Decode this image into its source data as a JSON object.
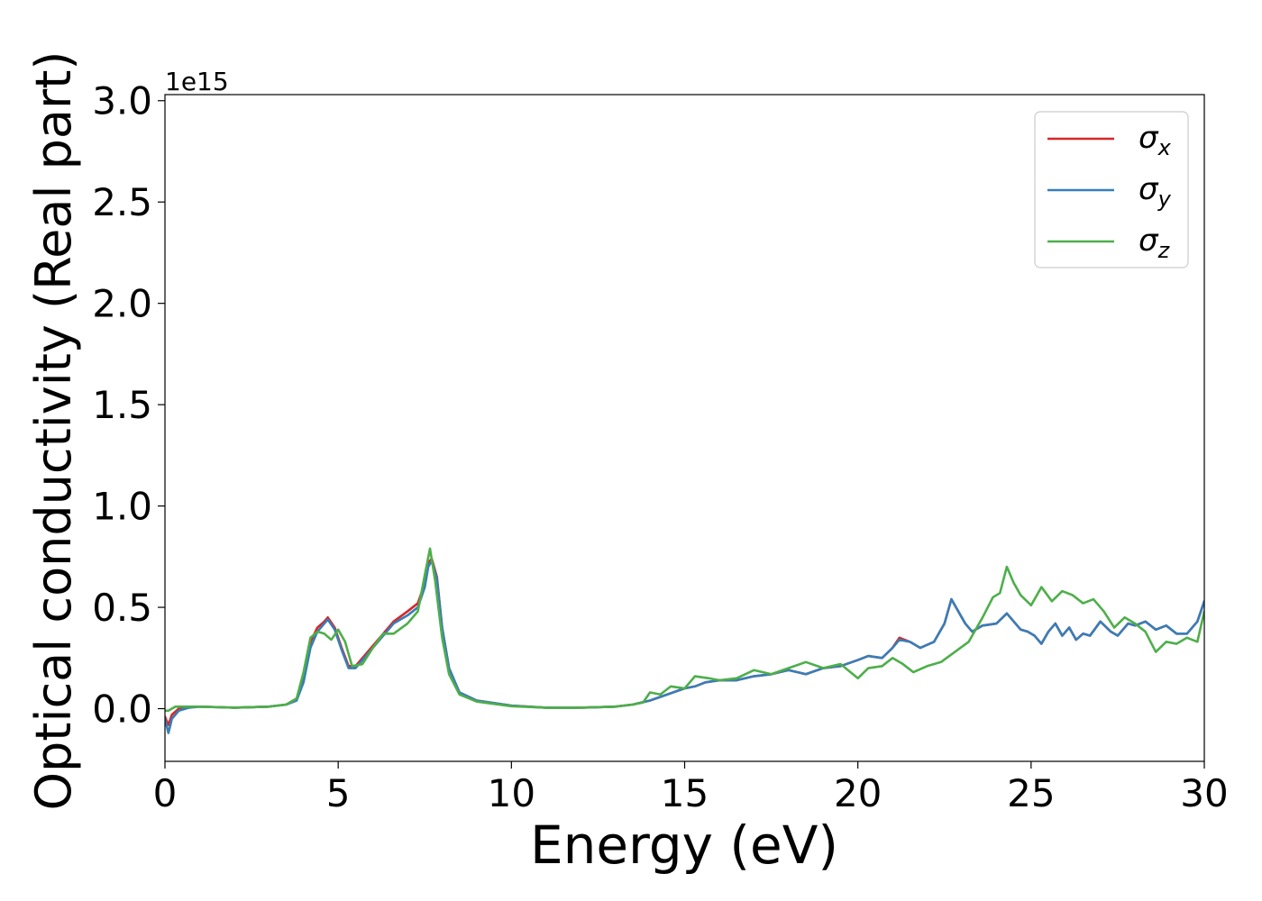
{
  "chart_data": {
    "type": "line",
    "title": "",
    "xlabel": "Energy (eV)",
    "ylabel": "Optical conductivity (Real part)",
    "y_offset_text": "1e15",
    "y_scale_factor": 1000000000000000.0,
    "xlim": [
      0,
      30
    ],
    "ylim": [
      -0.26,
      3.03
    ],
    "x_ticks": [
      0,
      5,
      10,
      15,
      20,
      25,
      30
    ],
    "x_tick_labels": [
      "0",
      "5",
      "10",
      "15",
      "20",
      "25",
      "30"
    ],
    "y_ticks": [
      0.0,
      0.5,
      1.0,
      1.5,
      2.0,
      2.5,
      3.0
    ],
    "y_tick_labels": [
      "0.0",
      "0.5",
      "1.0",
      "1.5",
      "2.0",
      "2.5",
      "3.0"
    ],
    "grid": false,
    "legend_position": "top-right",
    "legend": [
      {
        "symbol": "σ",
        "subscript": "x"
      },
      {
        "symbol": "σ",
        "subscript": "y"
      },
      {
        "symbol": "σ",
        "subscript": "z"
      }
    ],
    "series": [
      {
        "color": "#d62728",
        "x": [
          0,
          0.1,
          0.2,
          0.4,
          0.7,
          1,
          2,
          3,
          3.5,
          3.8,
          4.0,
          4.2,
          4.4,
          4.6,
          4.7,
          4.9,
          5.1,
          5.3,
          5.5,
          5.8,
          6.2,
          6.6,
          7.0,
          7.3,
          7.5,
          7.6,
          7.7,
          7.85,
          8.0,
          8.2,
          8.5,
          9,
          10,
          11,
          12,
          13,
          13.5,
          14.0,
          14.5,
          15.0,
          15.3,
          15.6,
          16.0,
          16.5,
          17.0,
          17.5,
          18.0,
          18.5,
          19.0,
          19.5,
          20.0,
          20.3,
          20.7,
          21.0,
          21.2,
          21.5,
          21.8,
          22.2,
          22.5,
          22.7,
          22.9,
          23.1,
          23.3,
          23.6,
          24.0,
          24.3,
          24.5,
          24.7,
          24.9,
          25.1,
          25.3,
          25.5,
          25.7,
          25.9,
          26.1,
          26.3,
          26.5,
          26.7,
          27.0,
          27.3,
          27.5,
          27.8,
          28.0,
          28.3,
          28.6,
          28.9,
          29.2,
          29.5,
          29.8,
          30
        ],
        "y": [
          -0.04,
          -0.08,
          -0.03,
          0.0,
          0.01,
          0.01,
          0.005,
          0.01,
          0.02,
          0.05,
          0.15,
          0.33,
          0.4,
          0.43,
          0.45,
          0.4,
          0.3,
          0.21,
          0.21,
          0.27,
          0.35,
          0.43,
          0.48,
          0.52,
          0.62,
          0.72,
          0.74,
          0.65,
          0.4,
          0.2,
          0.08,
          0.04,
          0.015,
          0.005,
          0.005,
          0.01,
          0.02,
          0.04,
          0.07,
          0.1,
          0.11,
          0.13,
          0.14,
          0.14,
          0.16,
          0.17,
          0.19,
          0.17,
          0.2,
          0.21,
          0.24,
          0.26,
          0.25,
          0.3,
          0.35,
          0.33,
          0.3,
          0.33,
          0.42,
          0.54,
          0.48,
          0.42,
          0.38,
          0.41,
          0.42,
          0.47,
          0.43,
          0.39,
          0.38,
          0.36,
          0.32,
          0.38,
          0.42,
          0.36,
          0.4,
          0.34,
          0.37,
          0.36,
          0.43,
          0.38,
          0.36,
          0.42,
          0.41,
          0.43,
          0.39,
          0.41,
          0.37,
          0.37,
          0.43,
          0.53
        ]
      },
      {
        "color": "#377eb8",
        "x": [
          0,
          0.1,
          0.2,
          0.4,
          0.7,
          1,
          2,
          3,
          3.5,
          3.8,
          4.0,
          4.2,
          4.4,
          4.6,
          4.7,
          4.9,
          5.1,
          5.3,
          5.5,
          5.8,
          6.2,
          6.6,
          7.0,
          7.3,
          7.5,
          7.6,
          7.7,
          7.85,
          8.0,
          8.2,
          8.5,
          9,
          10,
          11,
          12,
          13,
          13.5,
          14.0,
          14.5,
          15.0,
          15.3,
          15.6,
          16.0,
          16.5,
          17.0,
          17.5,
          18.0,
          18.5,
          19.0,
          19.5,
          20.0,
          20.3,
          20.7,
          21.0,
          21.2,
          21.5,
          21.8,
          22.2,
          22.5,
          22.7,
          22.9,
          23.1,
          23.3,
          23.6,
          24.0,
          24.3,
          24.5,
          24.7,
          24.9,
          25.1,
          25.3,
          25.5,
          25.7,
          25.9,
          26.1,
          26.3,
          26.5,
          26.7,
          27.0,
          27.3,
          27.5,
          27.8,
          28.0,
          28.3,
          28.6,
          28.9,
          29.2,
          29.5,
          29.8,
          30
        ],
        "y": [
          -0.05,
          -0.12,
          -0.05,
          -0.01,
          0.005,
          0.01,
          0.005,
          0.01,
          0.02,
          0.04,
          0.13,
          0.3,
          0.38,
          0.42,
          0.44,
          0.39,
          0.29,
          0.2,
          0.2,
          0.26,
          0.34,
          0.42,
          0.46,
          0.5,
          0.6,
          0.7,
          0.73,
          0.64,
          0.4,
          0.2,
          0.08,
          0.04,
          0.015,
          0.005,
          0.005,
          0.01,
          0.02,
          0.04,
          0.07,
          0.1,
          0.11,
          0.13,
          0.14,
          0.14,
          0.16,
          0.17,
          0.19,
          0.17,
          0.2,
          0.21,
          0.24,
          0.26,
          0.25,
          0.3,
          0.34,
          0.33,
          0.3,
          0.33,
          0.42,
          0.54,
          0.48,
          0.42,
          0.38,
          0.41,
          0.42,
          0.47,
          0.43,
          0.39,
          0.38,
          0.36,
          0.32,
          0.38,
          0.42,
          0.36,
          0.4,
          0.34,
          0.37,
          0.36,
          0.43,
          0.38,
          0.36,
          0.42,
          0.41,
          0.43,
          0.39,
          0.41,
          0.37,
          0.37,
          0.43,
          0.53
        ]
      },
      {
        "color": "#4daf4a",
        "x": [
          0,
          0.1,
          0.3,
          0.6,
          1,
          2,
          3,
          3.5,
          3.8,
          4.0,
          4.2,
          4.4,
          4.6,
          4.8,
          5.0,
          5.2,
          5.4,
          5.7,
          6.0,
          6.3,
          6.6,
          7.0,
          7.3,
          7.5,
          7.65,
          7.8,
          8.0,
          8.2,
          8.5,
          9,
          10,
          11,
          12,
          13,
          13.5,
          13.8,
          14.0,
          14.3,
          14.6,
          15.0,
          15.3,
          15.7,
          16.0,
          16.5,
          17.0,
          17.5,
          18.0,
          18.5,
          19.0,
          19.5,
          20.0,
          20.3,
          20.7,
          21.0,
          21.3,
          21.6,
          22.0,
          22.4,
          22.8,
          23.2,
          23.6,
          23.9,
          24.1,
          24.3,
          24.5,
          24.7,
          25.0,
          25.3,
          25.6,
          25.9,
          26.2,
          26.5,
          26.8,
          27.1,
          27.4,
          27.7,
          28.0,
          28.3,
          28.6,
          28.9,
          29.2,
          29.5,
          29.8,
          30
        ],
        "y": [
          -0.01,
          -0.01,
          0.01,
          0.01,
          0.01,
          0.005,
          0.01,
          0.02,
          0.05,
          0.18,
          0.35,
          0.38,
          0.37,
          0.34,
          0.39,
          0.33,
          0.21,
          0.22,
          0.3,
          0.37,
          0.37,
          0.42,
          0.48,
          0.66,
          0.79,
          0.63,
          0.35,
          0.17,
          0.07,
          0.035,
          0.012,
          0.005,
          0.005,
          0.01,
          0.02,
          0.03,
          0.08,
          0.07,
          0.11,
          0.1,
          0.16,
          0.15,
          0.14,
          0.15,
          0.19,
          0.17,
          0.2,
          0.23,
          0.2,
          0.22,
          0.15,
          0.2,
          0.21,
          0.25,
          0.22,
          0.18,
          0.21,
          0.23,
          0.28,
          0.33,
          0.45,
          0.55,
          0.57,
          0.7,
          0.62,
          0.56,
          0.51,
          0.6,
          0.53,
          0.58,
          0.56,
          0.52,
          0.54,
          0.48,
          0.4,
          0.45,
          0.42,
          0.38,
          0.28,
          0.33,
          0.32,
          0.35,
          0.33,
          0.48
        ]
      }
    ]
  }
}
